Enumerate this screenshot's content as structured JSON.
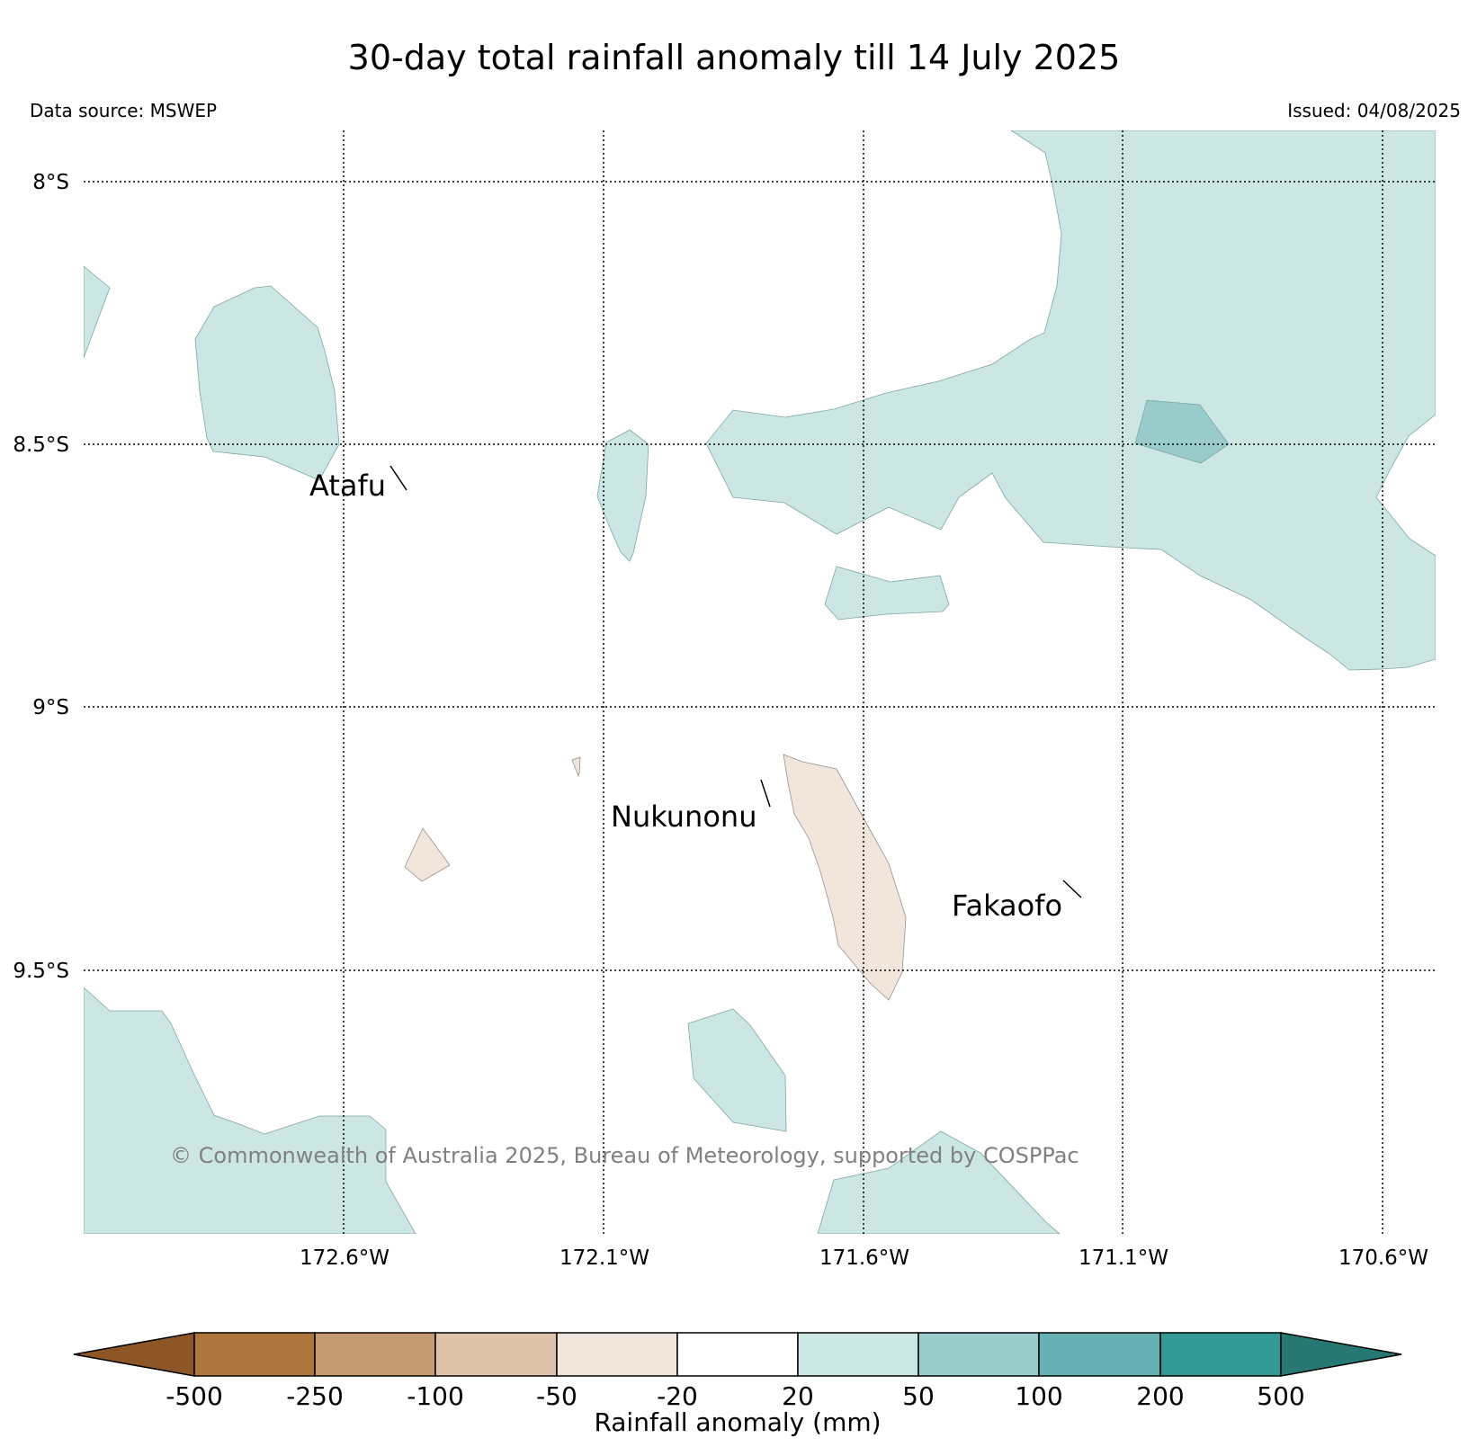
{
  "title": "30-day total rainfall anomaly till 14 July 2025",
  "data_source": "Data source: MSWEP",
  "issued": "Issued: 04/08/2025",
  "copyright": "© Commonwealth of Australia 2025, Bureau of Meteorology, supported by COSPPac",
  "map": {
    "lat_labels": [
      "8°S",
      "8.5°S",
      "9°S",
      "9.5°S"
    ],
    "lon_labels": [
      "172.6°W",
      "172.1°W",
      "171.6°W",
      "171.1°W",
      "170.6°W"
    ],
    "places": [
      "Atafu",
      "Nukunonu",
      "Fakaofo"
    ],
    "gridlines": "dotted"
  },
  "colorbar": {
    "label": "Rainfall anomaly (mm)",
    "ticks": [
      "-500",
      "-250",
      "-100",
      "-50",
      "-20",
      "20",
      "50",
      "100",
      "200",
      "500"
    ],
    "colors": [
      "#8c5627",
      "#ad763d",
      "#c39a71",
      "#dbc2a8",
      "#f0e6dc",
      "#ffffff",
      "#cce6e3",
      "#98cbca",
      "#66b1b1",
      "#339a96",
      "#277873"
    ],
    "extend": "both"
  },
  "region_colors": {
    "wet_20_50": "#cce6e3",
    "wet_50_100": "#98cbca",
    "dry_20_50": "#f0e6dc"
  }
}
